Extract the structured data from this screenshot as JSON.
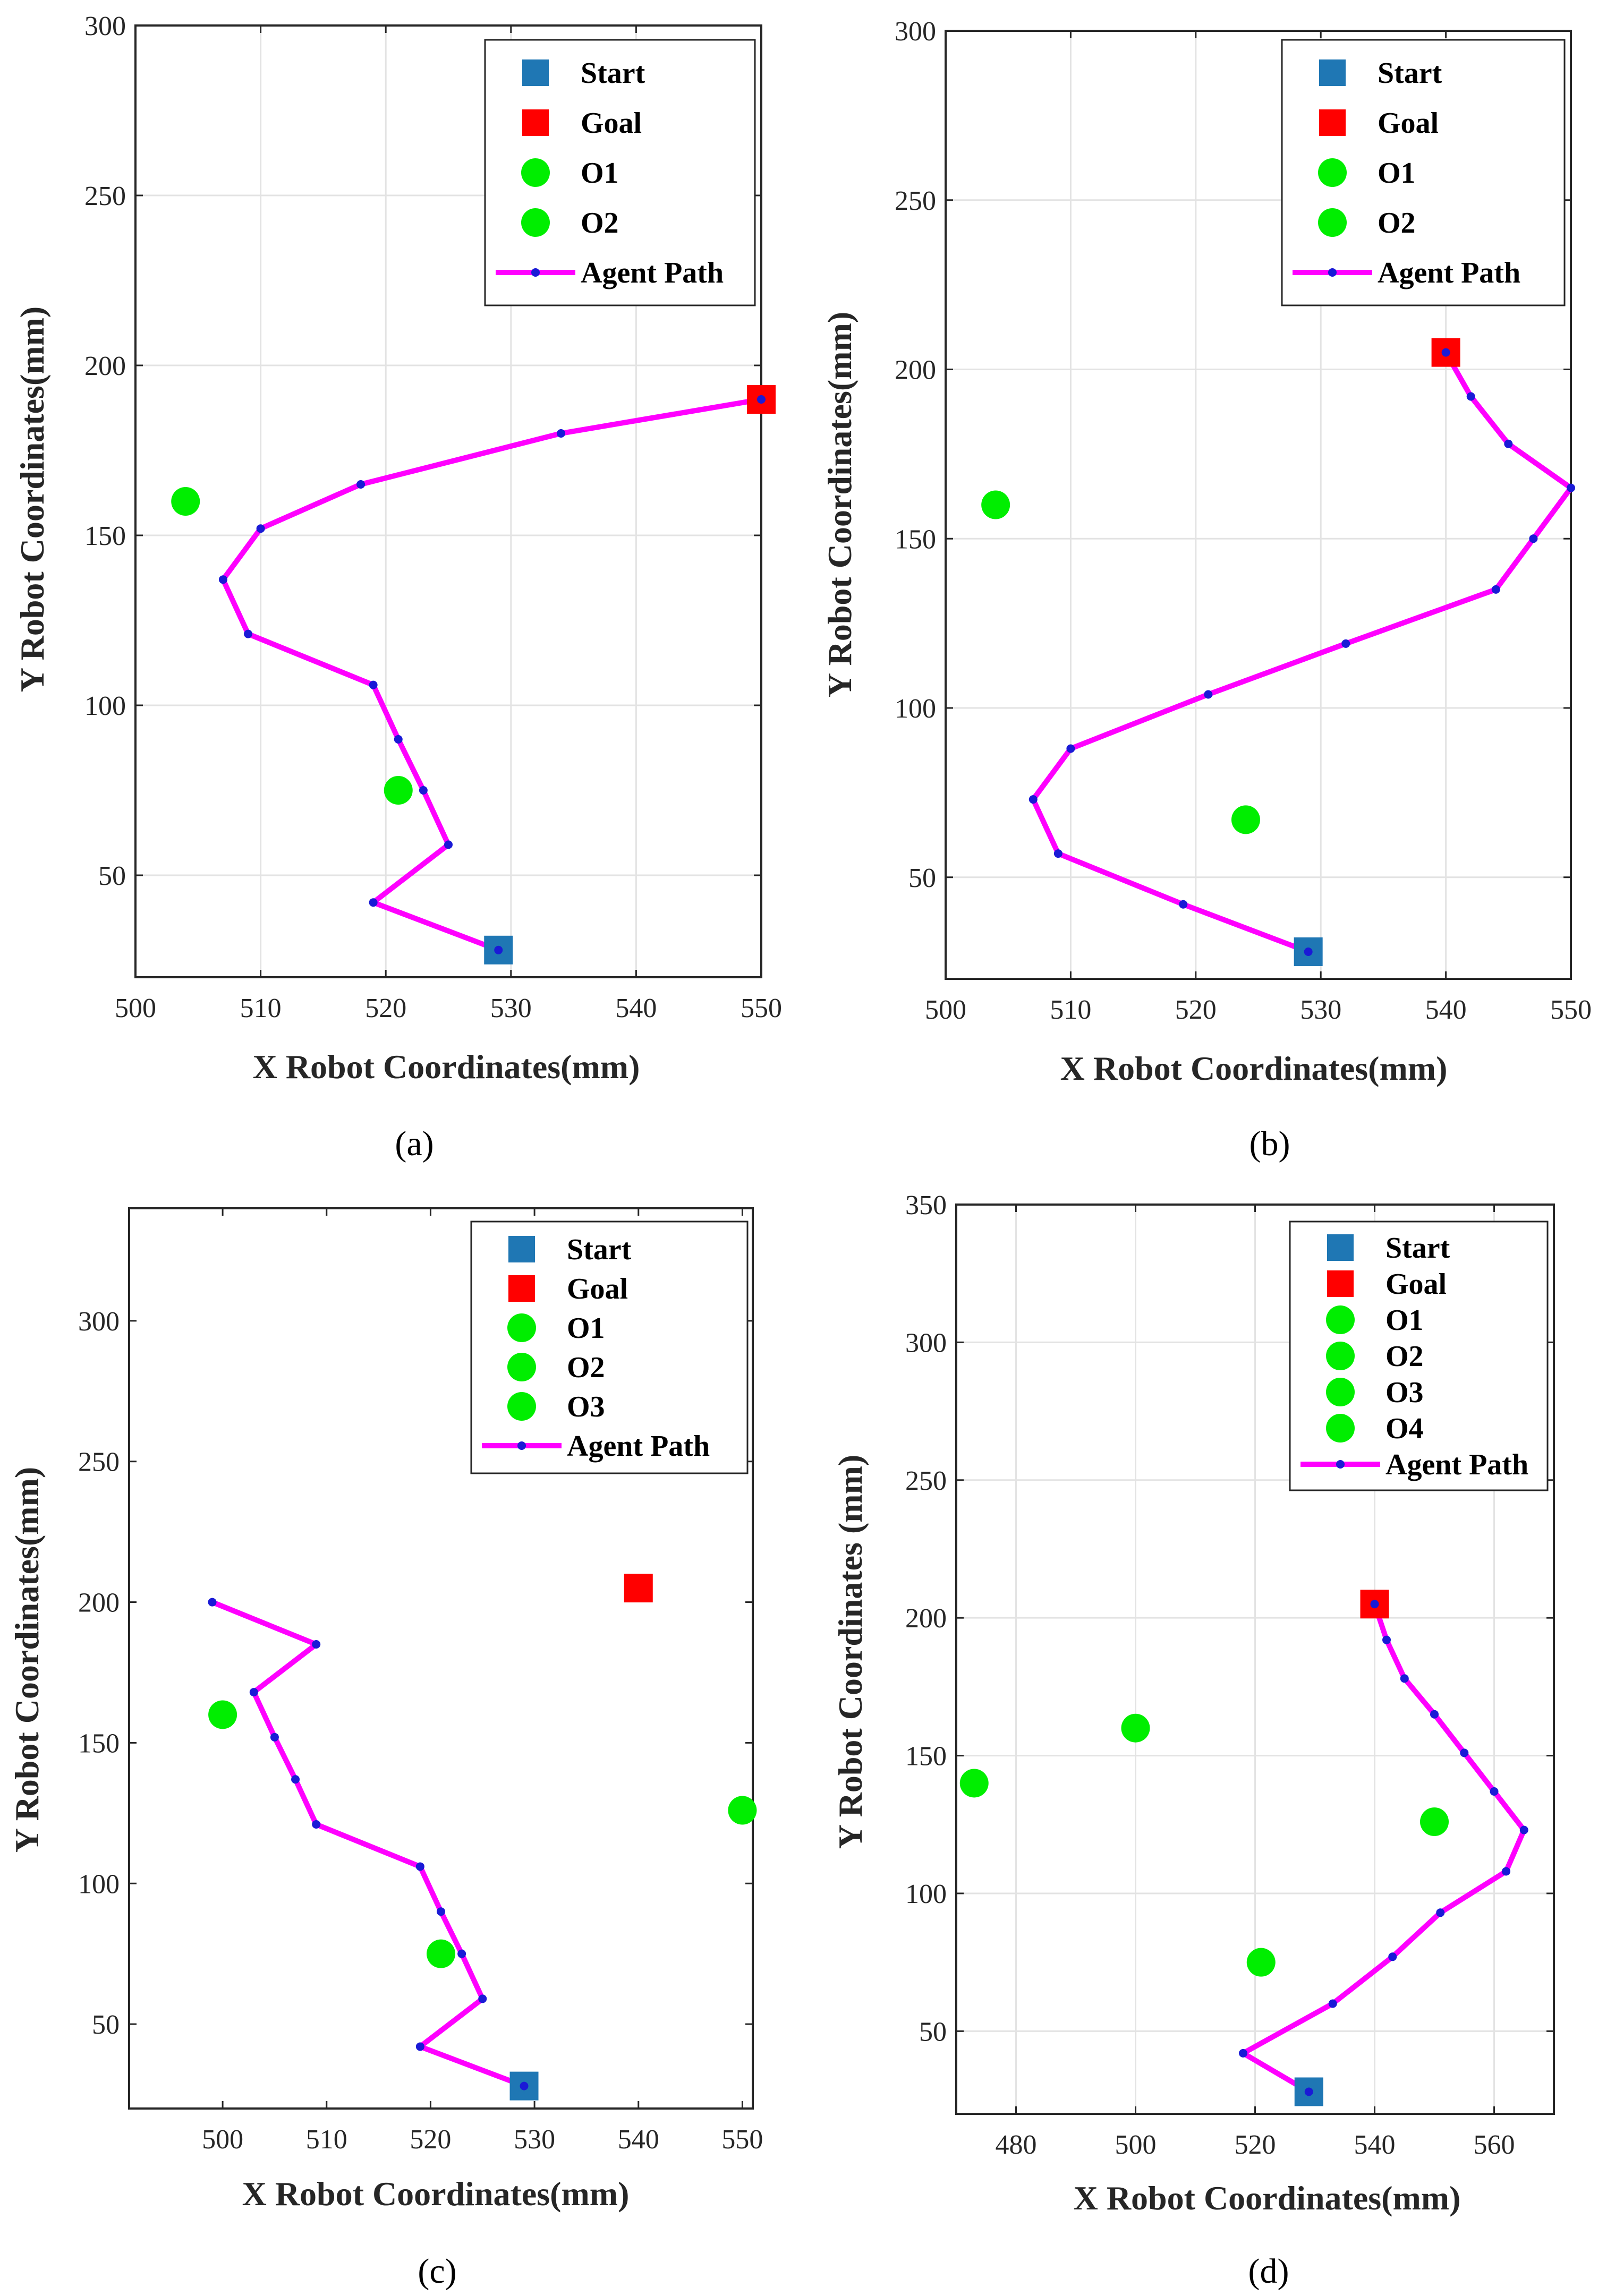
{
  "chart_data": [
    {
      "id": "a",
      "type": "scatter",
      "caption": "(a)",
      "xlabel": "X Robot Coordinates(mm)",
      "ylabel": "Y Robot Coordinates(mm)",
      "xlim": [
        500,
        550
      ],
      "ylim": [
        20,
        300
      ],
      "xticks": [
        500,
        510,
        520,
        530,
        540,
        550
      ],
      "yticks": [
        50,
        100,
        150,
        200,
        250,
        300
      ],
      "grid": true,
      "start": [
        529,
        28
      ],
      "goal": [
        550,
        190
      ],
      "obstacles": [
        {
          "name": "O1",
          "x": 504,
          "y": 160
        },
        {
          "name": "O2",
          "x": 521,
          "y": 75
        }
      ],
      "path": [
        [
          529,
          28
        ],
        [
          519,
          42
        ],
        [
          525,
          59
        ],
        [
          523,
          75
        ],
        [
          521,
          90
        ],
        [
          519,
          106
        ],
        [
          509,
          121
        ],
        [
          507,
          137
        ],
        [
          510,
          152
        ],
        [
          518,
          165
        ],
        [
          534,
          180
        ],
        [
          550,
          190
        ]
      ],
      "legend": [
        "Start",
        "Goal",
        "O1",
        "O2",
        "Agent Path"
      ]
    },
    {
      "id": "b",
      "type": "scatter",
      "caption": "(b)",
      "xlabel": "X Robot Coordinates(mm)",
      "ylabel": "Y Robot Coordinates(mm)",
      "xlim": [
        500,
        550
      ],
      "ylim": [
        20,
        300
      ],
      "xticks": [
        500,
        510,
        520,
        530,
        540,
        550
      ],
      "yticks": [
        50,
        100,
        150,
        200,
        250,
        300
      ],
      "grid": true,
      "start": [
        529,
        28
      ],
      "goal": [
        540,
        205
      ],
      "obstacles": [
        {
          "name": "O1",
          "x": 504,
          "y": 160
        },
        {
          "name": "O2",
          "x": 524,
          "y": 67
        }
      ],
      "path": [
        [
          529,
          28
        ],
        [
          519,
          42
        ],
        [
          509,
          57
        ],
        [
          507,
          73
        ],
        [
          510,
          88
        ],
        [
          521,
          104
        ],
        [
          532,
          119
        ],
        [
          544,
          135
        ],
        [
          547,
          150
        ],
        [
          550,
          165
        ],
        [
          545,
          178
        ],
        [
          542,
          192
        ],
        [
          540,
          205
        ]
      ],
      "legend": [
        "Start",
        "Goal",
        "O1",
        "O2",
        "Agent Path"
      ]
    },
    {
      "id": "c",
      "type": "scatter",
      "caption": "(c)",
      "xlabel": "X Robot Coordinates(mm)",
      "ylabel": "Y Robot Coordinates(mm)",
      "xlim": [
        491,
        551
      ],
      "ylim": [
        20,
        340
      ],
      "xticks": [
        500,
        510,
        520,
        530,
        540,
        550
      ],
      "yticks": [
        50,
        100,
        150,
        200,
        250,
        300
      ],
      "grid": false,
      "start": [
        529,
        28
      ],
      "goal": [
        540,
        205
      ],
      "obstacles": [
        {
          "name": "O1",
          "x": 500,
          "y": 160
        },
        {
          "name": "O2",
          "x": 521,
          "y": 75
        },
        {
          "name": "O3",
          "x": 550,
          "y": 126
        }
      ],
      "path": [
        [
          529,
          28
        ],
        [
          519,
          42
        ],
        [
          525,
          59
        ],
        [
          523,
          75
        ],
        [
          521,
          90
        ],
        [
          519,
          106
        ],
        [
          509,
          121
        ],
        [
          507,
          137
        ],
        [
          505,
          152
        ],
        [
          503,
          168
        ],
        [
          509,
          185
        ],
        [
          499,
          200
        ]
      ],
      "legend": [
        "Start",
        "Goal",
        "O1",
        "O2",
        "O3",
        "Agent Path"
      ]
    },
    {
      "id": "d",
      "type": "scatter",
      "caption": "(d)",
      "xlabel": "X Robot Coordinates(mm)",
      "ylabel": "Y Robot Coordinates (mm)",
      "xlim": [
        470,
        570
      ],
      "ylim": [
        20,
        350
      ],
      "xticks": [
        480,
        500,
        520,
        540,
        560
      ],
      "yticks": [
        50,
        100,
        150,
        200,
        250,
        300,
        350
      ],
      "grid": true,
      "start": [
        529,
        28
      ],
      "goal": [
        540,
        205
      ],
      "obstacles": [
        {
          "name": "O1",
          "x": 473,
          "y": 140
        },
        {
          "name": "O2",
          "x": 500,
          "y": 160
        },
        {
          "name": "O3",
          "x": 521,
          "y": 75
        },
        {
          "name": "O4",
          "x": 550,
          "y": 126
        }
      ],
      "path": [
        [
          529,
          28
        ],
        [
          518,
          42
        ],
        [
          533,
          60
        ],
        [
          543,
          77
        ],
        [
          551,
          93
        ],
        [
          562,
          108
        ],
        [
          565,
          123
        ],
        [
          560,
          137
        ],
        [
          555,
          151
        ],
        [
          550,
          165
        ],
        [
          545,
          178
        ],
        [
          542,
          192
        ],
        [
          540,
          205
        ]
      ],
      "legend": [
        "Start",
        "Goal",
        "O1",
        "O2",
        "O3",
        "O4",
        "Agent Path"
      ]
    }
  ],
  "colors": {
    "start": "#1f77b4",
    "goal": "#ff0000",
    "obstacle": "#00ee00",
    "path": "#ff00ff",
    "waypoint": "#1a1ad6",
    "grid": "#e3e3e3",
    "axis": "#262626"
  }
}
